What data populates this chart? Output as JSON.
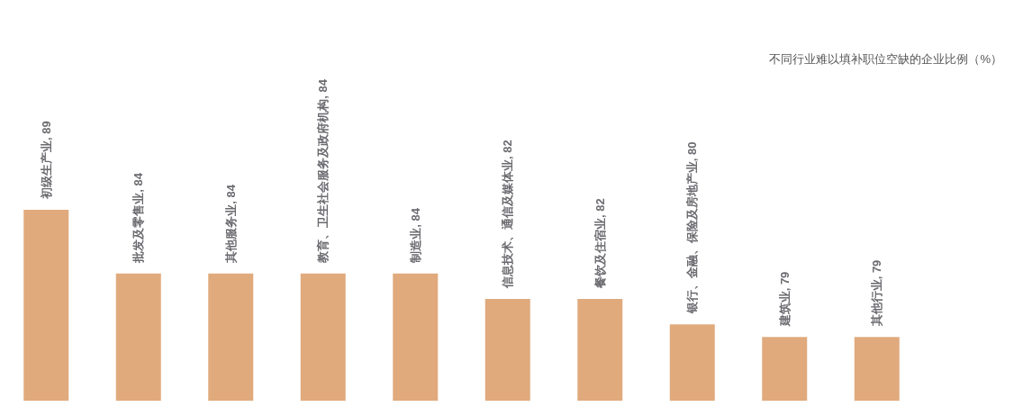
{
  "chart_data": {
    "type": "bar",
    "title": "不同行业难以填补职位空缺的企业比例（%）",
    "categories": [
      null,
      null,
      null,
      null,
      null,
      null,
      null,
      null,
      null,
      null
    ],
    "values": [
      89,
      84,
      84,
      84,
      84,
      82,
      82,
      80,
      79,
      79
    ],
    "value_labels": [
      "初级生产业, 89",
      "批发及零售业, 84",
      "其他服务业, 84",
      "教育、卫生社会服务及政府机构, 84",
      "制造业, 84",
      "信息技术、通信及媒体业, 82",
      "餐饮及住宿业, 82",
      "银行、金融、保险及房地产业, 80",
      "建筑业, 79",
      "其他行业, 79"
    ],
    "color": "#e0aa7d",
    "ylim": [
      74,
      89
    ],
    "tick_labels": false
  }
}
